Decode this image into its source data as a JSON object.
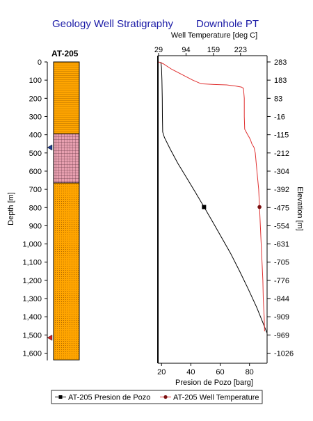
{
  "titles": {
    "left": "Geology Well Stratigraphy",
    "right": "Downhole PT"
  },
  "well": {
    "name": "AT-205"
  },
  "colors": {
    "title": "#1a1aa6",
    "layer_orange": "#FFA500",
    "layer_pink": "#E8A0B0",
    "temperature_line": "#E03030",
    "pressure_line": "#000000",
    "marker_blue": "#1f3a8a",
    "marker_red": "#d02020"
  },
  "chart_data": {
    "type": "line",
    "depth_axis": {
      "label": "Depth [m]",
      "ticks": [
        "0",
        "100",
        "200",
        "300",
        "400",
        "500",
        "600",
        "700",
        "800",
        "900",
        "1,000",
        "1,100",
        "1,200",
        "1,300",
        "1,400",
        "1,500",
        "1,600"
      ],
      "range": [
        0,
        1640
      ],
      "inverted": true
    },
    "elevation_axis": {
      "label": "Elevation [m]",
      "ticks": [
        {
          "depth": 0,
          "label": "283"
        },
        {
          "depth": 100,
          "label": "183"
        },
        {
          "depth": 200,
          "label": "83"
        },
        {
          "depth": 300,
          "label": "-16"
        },
        {
          "depth": 400,
          "label": "-115"
        },
        {
          "depth": 500,
          "label": "-212"
        },
        {
          "depth": 600,
          "label": "-304"
        },
        {
          "depth": 700,
          "label": "-392"
        },
        {
          "depth": 800,
          "label": "-475"
        },
        {
          "depth": 900,
          "label": "-554"
        },
        {
          "depth": 1000,
          "label": "-631"
        },
        {
          "depth": 1100,
          "label": "-705"
        },
        {
          "depth": 1200,
          "label": "-776"
        },
        {
          "depth": 1300,
          "label": "-844"
        },
        {
          "depth": 1400,
          "label": "-909"
        },
        {
          "depth": 1500,
          "label": "-969"
        },
        {
          "depth": 1600,
          "label": "-1026"
        }
      ]
    },
    "temperature_axis": {
      "label": "Well Temperature [deg C]",
      "range": [
        29,
        286
      ],
      "ticks": [
        {
          "value": 29,
          "label": "29"
        },
        {
          "value": 94,
          "label": "94"
        },
        {
          "value": 159,
          "label": "159"
        },
        {
          "value": 223,
          "label": "223"
        }
      ]
    },
    "pressure_axis": {
      "label": "Presion de Pozo [barg]",
      "range": [
        18,
        92
      ],
      "ticks": [
        {
          "value": 20,
          "label": "20"
        },
        {
          "value": 40,
          "label": "40"
        },
        {
          "value": 60,
          "label": "60"
        },
        {
          "value": 80,
          "label": "80"
        }
      ]
    },
    "lithology": [
      {
        "top": 0,
        "bottom": 395,
        "pattern": "lines",
        "color": "#FFA500"
      },
      {
        "top": 395,
        "bottom": 665,
        "pattern": "crosshatch",
        "color": "#E8A0B0"
      },
      {
        "top": 665,
        "bottom": 1640,
        "pattern": "dots",
        "color": "#FFA500"
      }
    ],
    "well_markers": [
      {
        "depth": 470,
        "color": "#1f3a8a"
      },
      {
        "depth": 1515,
        "color": "#d02020"
      }
    ],
    "series": [
      {
        "name": "AT-205 Presion de Pozo",
        "axis": "pressure",
        "color": "#000000",
        "marker": "square",
        "marker_depth": 797,
        "points": [
          [
            19.5,
            0
          ],
          [
            20,
            30
          ],
          [
            20.3,
            100
          ],
          [
            20.5,
            200
          ],
          [
            20.6,
            300
          ],
          [
            20.8,
            385
          ],
          [
            22,
            415
          ],
          [
            26,
            480
          ],
          [
            31,
            555
          ],
          [
            37,
            635
          ],
          [
            43,
            715
          ],
          [
            49,
            797
          ],
          [
            55,
            880
          ],
          [
            61,
            965
          ],
          [
            67,
            1050
          ],
          [
            73,
            1145
          ],
          [
            79,
            1245
          ],
          [
            85,
            1350
          ],
          [
            89,
            1430
          ],
          [
            92,
            1490
          ]
        ]
      },
      {
        "name": "AT-205 Well Temperature",
        "axis": "temperature",
        "color": "#E03030",
        "marker": "circle",
        "marker_depth": 797,
        "points": [
          [
            29,
            0
          ],
          [
            40,
            10
          ],
          [
            60,
            40
          ],
          [
            85,
            70
          ],
          [
            110,
            100
          ],
          [
            130,
            120
          ],
          [
            160,
            124
          ],
          [
            190,
            126
          ],
          [
            210,
            132
          ],
          [
            225,
            138
          ],
          [
            230,
            145
          ],
          [
            232,
            200
          ],
          [
            232,
            300
          ],
          [
            233,
            370
          ],
          [
            240,
            400
          ],
          [
            245,
            420
          ],
          [
            247,
            430
          ],
          [
            250,
            450
          ],
          [
            255,
            470
          ],
          [
            258,
            500
          ],
          [
            262,
            600
          ],
          [
            266,
            700
          ],
          [
            268,
            797
          ],
          [
            270,
            900
          ],
          [
            272,
            1000
          ],
          [
            274,
            1100
          ],
          [
            276,
            1200
          ],
          [
            277,
            1300
          ],
          [
            279,
            1400
          ],
          [
            280,
            1480
          ]
        ]
      }
    ]
  }
}
